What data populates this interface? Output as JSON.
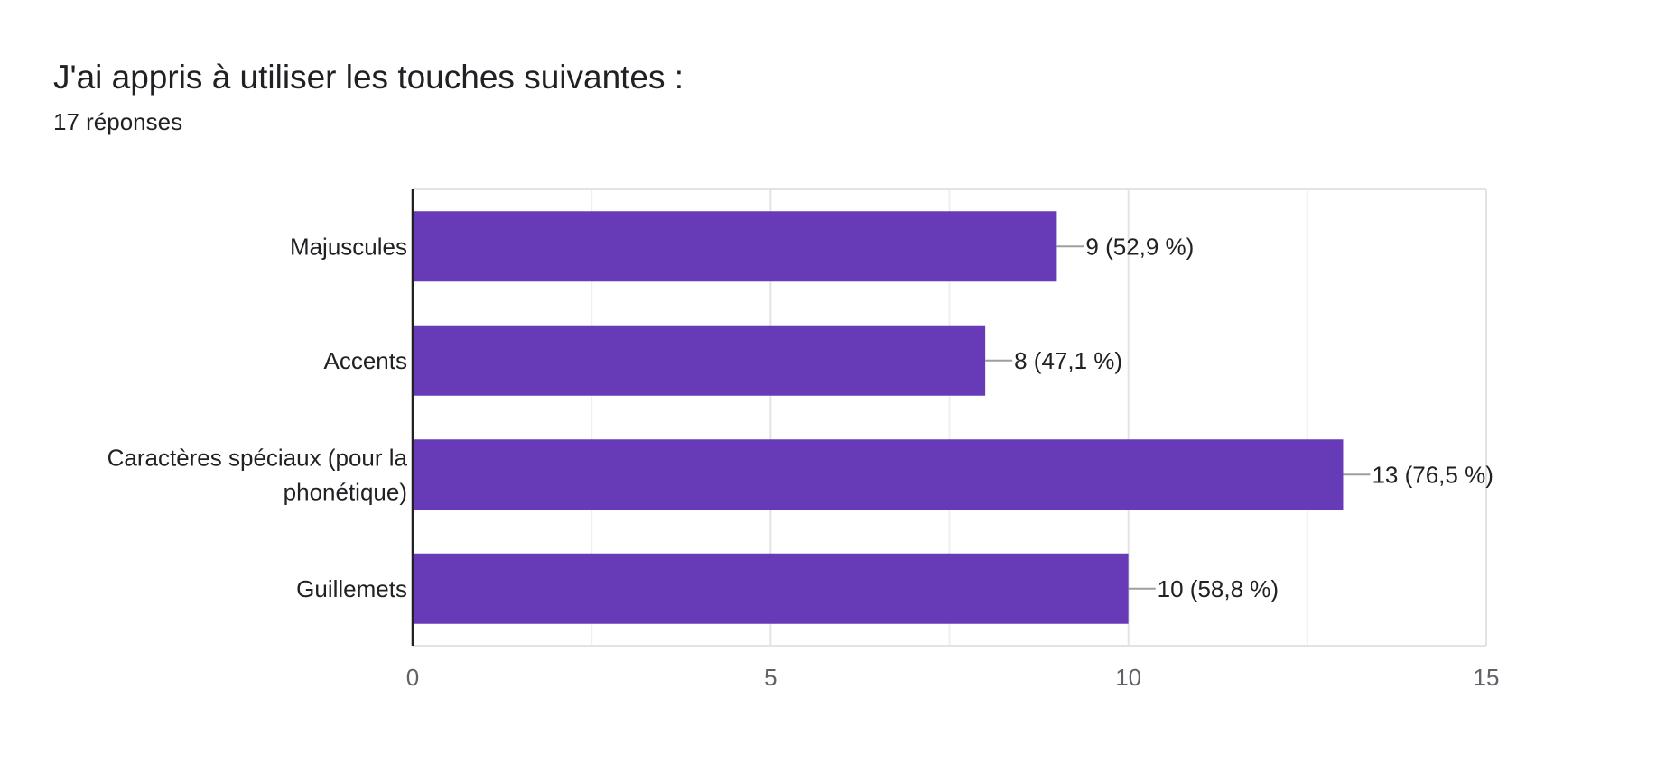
{
  "question": {
    "title": "J'ai appris à utiliser les touches suivantes :",
    "responses": "17 réponses"
  },
  "chart_data": {
    "type": "bar",
    "orientation": "horizontal",
    "categories": [
      [
        "Majuscules"
      ],
      [
        "Accents"
      ],
      [
        "Caractères spéciaux (pour la",
        "phonétique)"
      ],
      [
        "Guillemets"
      ]
    ],
    "values": [
      9,
      8,
      13,
      10
    ],
    "data_labels": [
      "9 (52,9 %)",
      "8 (47,1 %)",
      "13 (76,5 %)",
      "10 (58,8 %)"
    ],
    "xlim": [
      0,
      15
    ],
    "x_ticks": [
      "0",
      "5",
      "10",
      "15"
    ],
    "grid": true,
    "legend": "none",
    "bar_color": "#673ab7"
  }
}
